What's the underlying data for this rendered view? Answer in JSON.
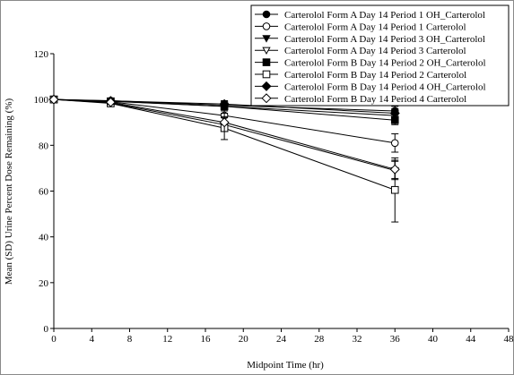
{
  "chart_data": {
    "type": "line",
    "title": "",
    "xlabel": "Midpoint Time (hr)",
    "ylabel": "Mean (SD) Urine Percent Dose Remaining (%)",
    "xlim": [
      0,
      48
    ],
    "ylim": [
      0,
      120
    ],
    "xticks": [
      0,
      4,
      8,
      12,
      16,
      20,
      24,
      28,
      32,
      36,
      40,
      44,
      48
    ],
    "yticks": [
      0,
      20,
      40,
      60,
      80,
      100,
      120
    ],
    "grid": false,
    "legend_position": "top-right",
    "x": [
      0,
      6,
      18,
      36
    ],
    "series": [
      {
        "name": "Carterolol Form A  Day 14  Period 1 OH_Carterolol",
        "marker": "circle-filled",
        "values": [
          100,
          99.5,
          97.5,
          95
        ],
        "sd": [
          0,
          0.5,
          1.5,
          2
        ]
      },
      {
        "name": "Carterolol Form A  Day 14  Period 1 Carterolol",
        "marker": "circle-open",
        "values": [
          100,
          99,
          93,
          81
        ],
        "sd": [
          0,
          1,
          4,
          4
        ]
      },
      {
        "name": "Carterolol Form A  Day 14  Period 3 OH_Carterolol",
        "marker": "triangle-down-filled",
        "values": [
          100,
          99.3,
          97,
          93
        ],
        "sd": [
          0,
          0.5,
          1.5,
          2
        ]
      },
      {
        "name": "Carterolol Form A  Day 14  Period 3 Carterolol",
        "marker": "triangle-down-open",
        "values": [
          100,
          98.5,
          89,
          69
        ],
        "sd": [
          0,
          1,
          3,
          4
        ]
      },
      {
        "name": "Carterolol Form B  Day 14  Period 2 OH_Carterolol",
        "marker": "square-filled",
        "values": [
          100,
          99.2,
          97,
          91
        ],
        "sd": [
          0,
          0.5,
          2,
          2
        ]
      },
      {
        "name": "Carterolol Form B  Day 14  Period 2 Carterolol",
        "marker": "square-open",
        "values": [
          100,
          98.3,
          87.5,
          60.5
        ],
        "sd": [
          0,
          1,
          5,
          14
        ]
      },
      {
        "name": "Carterolol Form B  Day 14  Period 4 OH_Carterolol",
        "marker": "diamond-filled",
        "values": [
          100,
          99.4,
          98,
          94
        ],
        "sd": [
          0,
          0.5,
          1.5,
          2
        ]
      },
      {
        "name": "Carterolol Form B  Day 14  Period 4 Carterolol",
        "marker": "diamond-open",
        "values": [
          100,
          98.8,
          90,
          69.5
        ],
        "sd": [
          0,
          1,
          4,
          4
        ]
      }
    ]
  }
}
